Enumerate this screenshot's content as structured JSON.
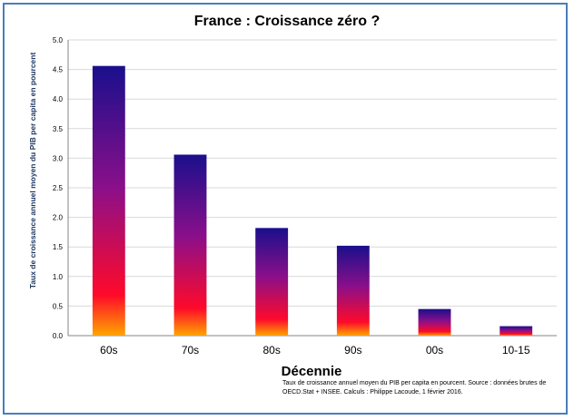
{
  "chart_data": {
    "type": "bar",
    "title": "France : Croissance zéro ?",
    "xlabel": "Décennie",
    "ylabel": "Taux de croissance annuel moyen du PIB per capita en pourcent",
    "categories": [
      "60s",
      "70s",
      "80s",
      "90s",
      "00s",
      "10-15"
    ],
    "values": [
      4.56,
      3.06,
      1.82,
      1.52,
      0.45,
      0.16
    ],
    "ylim": [
      0,
      5
    ],
    "yticks": [
      "0.0",
      "0.5",
      "1.0",
      "1.5",
      "2.0",
      "2.5",
      "3.0",
      "3.5",
      "4.0",
      "4.5",
      "5.0"
    ],
    "grid": true,
    "legend": "none",
    "bar_gradient": [
      "#1a0f8c",
      "#8a0f8a",
      "#ff0a2a",
      "#ffa500"
    ]
  },
  "note": "Taux de croissance annuel moyen du PIB per capita en pourcent. Source : données brutes de OECD.Stat + INSEE. Calculs : Philippe Lacoude, 1 février 2016."
}
